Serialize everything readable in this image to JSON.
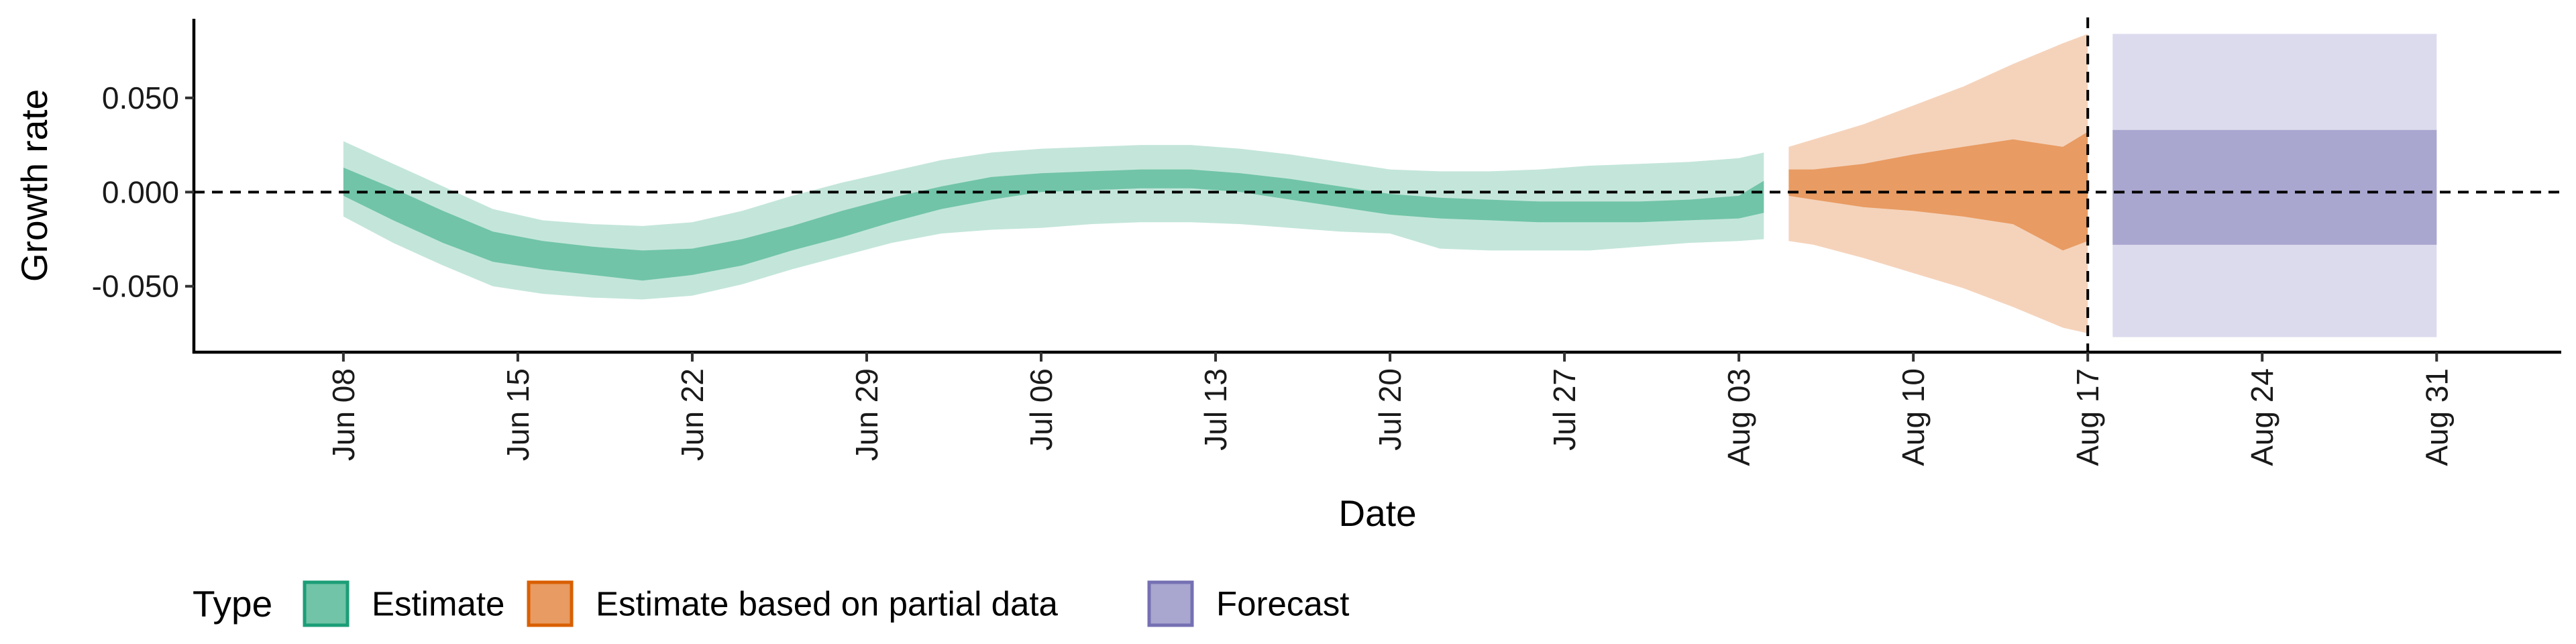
{
  "chart_data": {
    "type": "area",
    "title": "",
    "xlabel": "Date",
    "ylabel": "Growth rate",
    "ylim": [
      -0.085,
      0.092
    ],
    "y_ticks": [
      -0.05,
      0.0,
      0.05
    ],
    "y_tick_labels": [
      "-0.050",
      "0.000",
      "0.050"
    ],
    "x_range": [
      "2020-06-02",
      "2020-09-05"
    ],
    "x_ticks": [
      "2020-06-08",
      "2020-06-15",
      "2020-06-22",
      "2020-06-29",
      "2020-07-06",
      "2020-07-13",
      "2020-07-20",
      "2020-07-27",
      "2020-08-03",
      "2020-08-10",
      "2020-08-17",
      "2020-08-24",
      "2020-08-31"
    ],
    "x_tick_labels": [
      "Jun 08",
      "Jun 15",
      "Jun 22",
      "Jun 29",
      "Jul 06",
      "Jul 13",
      "Jul 20",
      "Jul 27",
      "Aug 03",
      "Aug 10",
      "Aug 17",
      "Aug 24",
      "Aug 31"
    ],
    "reference_lines": {
      "y": 0.0,
      "x": "2020-08-17"
    },
    "grid": false,
    "legend": {
      "title": "Type",
      "position": "bottom",
      "items": [
        {
          "label": "Estimate",
          "fill": "#71C4A7",
          "border": "#1B9E77"
        },
        {
          "label": "Estimate based on partial data",
          "fill": "#E89B62",
          "border": "#D95F02"
        },
        {
          "label": "Forecast",
          "fill": "#A9A6CF",
          "border": "#7570B3"
        }
      ]
    },
    "series": [
      {
        "name": "Estimate",
        "inner_color": "#71C4A7",
        "outer_color": "#C4E6DA",
        "x": [
          "2020-06-08",
          "2020-06-10",
          "2020-06-12",
          "2020-06-14",
          "2020-06-16",
          "2020-06-18",
          "2020-06-20",
          "2020-06-22",
          "2020-06-24",
          "2020-06-26",
          "2020-06-28",
          "2020-06-30",
          "2020-07-02",
          "2020-07-04",
          "2020-07-06",
          "2020-07-08",
          "2020-07-10",
          "2020-07-12",
          "2020-07-14",
          "2020-07-16",
          "2020-07-18",
          "2020-07-20",
          "2020-07-22",
          "2020-07-24",
          "2020-07-26",
          "2020-07-28",
          "2020-07-30",
          "2020-08-01",
          "2020-08-03",
          "2020-08-04"
        ],
        "inner_lo": [
          -0.002,
          -0.015,
          -0.027,
          -0.037,
          -0.041,
          -0.044,
          -0.047,
          -0.044,
          -0.039,
          -0.031,
          -0.024,
          -0.016,
          -0.009,
          -0.004,
          0.0,
          0.001,
          0.002,
          0.002,
          0.0,
          -0.004,
          -0.008,
          -0.012,
          -0.014,
          -0.015,
          -0.016,
          -0.016,
          -0.016,
          -0.015,
          -0.014,
          -0.011
        ],
        "inner_hi": [
          0.013,
          0.002,
          -0.01,
          -0.021,
          -0.026,
          -0.029,
          -0.031,
          -0.03,
          -0.025,
          -0.018,
          -0.01,
          -0.003,
          0.003,
          0.008,
          0.01,
          0.011,
          0.012,
          0.012,
          0.01,
          0.007,
          0.003,
          -0.001,
          -0.003,
          -0.004,
          -0.005,
          -0.005,
          -0.005,
          -0.004,
          -0.002,
          0.006
        ],
        "outer_lo": [
          -0.013,
          -0.027,
          -0.039,
          -0.05,
          -0.054,
          -0.056,
          -0.057,
          -0.055,
          -0.049,
          -0.041,
          -0.034,
          -0.027,
          -0.022,
          -0.02,
          -0.019,
          -0.017,
          -0.016,
          -0.016,
          -0.017,
          -0.019,
          -0.021,
          -0.022,
          -0.03,
          -0.031,
          -0.031,
          -0.031,
          -0.029,
          -0.027,
          -0.026,
          -0.025
        ],
        "outer_hi": [
          0.027,
          0.015,
          0.003,
          -0.009,
          -0.015,
          -0.017,
          -0.018,
          -0.016,
          -0.01,
          -0.002,
          0.005,
          0.011,
          0.017,
          0.021,
          0.023,
          0.024,
          0.025,
          0.025,
          0.023,
          0.02,
          0.016,
          0.012,
          0.011,
          0.011,
          0.012,
          0.014,
          0.015,
          0.016,
          0.018,
          0.021
        ]
      },
      {
        "name": "Estimate based on partial data",
        "inner_color": "#E89B62",
        "outer_color": "#F5D3BB",
        "x": [
          "2020-08-05",
          "2020-08-06",
          "2020-08-08",
          "2020-08-10",
          "2020-08-12",
          "2020-08-14",
          "2020-08-16",
          "2020-08-17"
        ],
        "inner_lo": [
          -0.002,
          -0.004,
          -0.008,
          -0.01,
          -0.013,
          -0.017,
          -0.031,
          -0.026
        ],
        "inner_hi": [
          0.012,
          0.012,
          0.015,
          0.02,
          0.024,
          0.028,
          0.024,
          0.032
        ],
        "outer_lo": [
          -0.026,
          -0.028,
          -0.035,
          -0.043,
          -0.051,
          -0.061,
          -0.072,
          -0.075
        ],
        "outer_hi": [
          0.024,
          0.028,
          0.036,
          0.046,
          0.056,
          0.068,
          0.079,
          0.084
        ]
      },
      {
        "name": "Forecast",
        "inner_color": "#A9A6CF",
        "outer_color": "#DCDBEE",
        "x": [
          "2020-08-18",
          "2020-08-31"
        ],
        "inner_lo": [
          -0.028,
          -0.028
        ],
        "inner_hi": [
          0.033,
          0.033
        ],
        "outer_lo": [
          -0.077,
          -0.077
        ],
        "outer_hi": [
          0.084,
          0.084
        ]
      }
    ]
  }
}
